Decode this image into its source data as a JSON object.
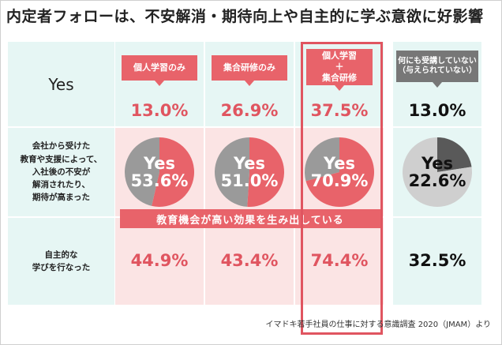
{
  "title": "内定者フォローは、不安解消・期待向上や自主的に学ぶ意欲に好影響",
  "row_labels": {
    "yes": "Yes",
    "anxiety_lines": [
      "会社から受けた",
      "教育や支援によって、",
      "入社後の不安が",
      "解消されたり、",
      "期待が高まった"
    ],
    "learning_lines": [
      "自主的な",
      "学びを行なった"
    ]
  },
  "columns": [
    {
      "tag_lines": [
        "個人学習のみ"
      ],
      "tag_style": "red",
      "yes_pct": "13.0%",
      "pie_yes_label": "Yes",
      "pie_pct": "53.6%",
      "learning_pct": "44.9%",
      "pct_style": "red"
    },
    {
      "tag_lines": [
        "集合研修のみ"
      ],
      "tag_style": "red",
      "yes_pct": "26.9%",
      "pie_yes_label": "Yes",
      "pie_pct": "51.0%",
      "learning_pct": "43.4%",
      "pct_style": "red"
    },
    {
      "tag_lines": [
        "個人学習",
        "＋",
        "集合研修"
      ],
      "tag_style": "red",
      "yes_pct": "37.5%",
      "pie_yes_label": "Yes",
      "pie_pct": "70.9%",
      "learning_pct": "74.4%",
      "pct_style": "red"
    },
    {
      "tag_lines": [
        "何にも受講していない",
        "（与えられていない）"
      ],
      "tag_style": "gray",
      "yes_pct": "13.0%",
      "pie_yes_label": "Yes",
      "pie_pct": "22.6%",
      "learning_pct": "32.5%",
      "pct_style": "black"
    }
  ],
  "banner": "教育機会が高い効果を生み出している",
  "source": "イマドキ若手社員の仕事に対する意識調査 2020（JMAM）より",
  "colors": {
    "accent_red": "#e8636a",
    "pie_red": "#e8636a",
    "pie_gray_dark": "#9a9a9a",
    "pie_gray_light": "#cfcfcf",
    "pie_last": "#595959",
    "mint": "#e6f6f4",
    "pink": "#fbe4e4"
  },
  "chart_data": {
    "type": "pie",
    "categories": [
      "個人学習のみ",
      "集合研修のみ",
      "個人学習＋集合研修",
      "何にも受講していない（与えられていない）"
    ],
    "series": [
      {
        "name": "Yes",
        "values": [
          13.0,
          26.9,
          37.5,
          13.0
        ]
      },
      {
        "name": "会社から受けた教育や支援によって、入社後の不安が解消されたり、期待が高まった",
        "values": [
          53.6,
          51.0,
          70.9,
          22.6
        ]
      },
      {
        "name": "自主的な学びを行なった",
        "values": [
          44.9,
          43.4,
          74.4,
          32.5
        ]
      }
    ]
  }
}
